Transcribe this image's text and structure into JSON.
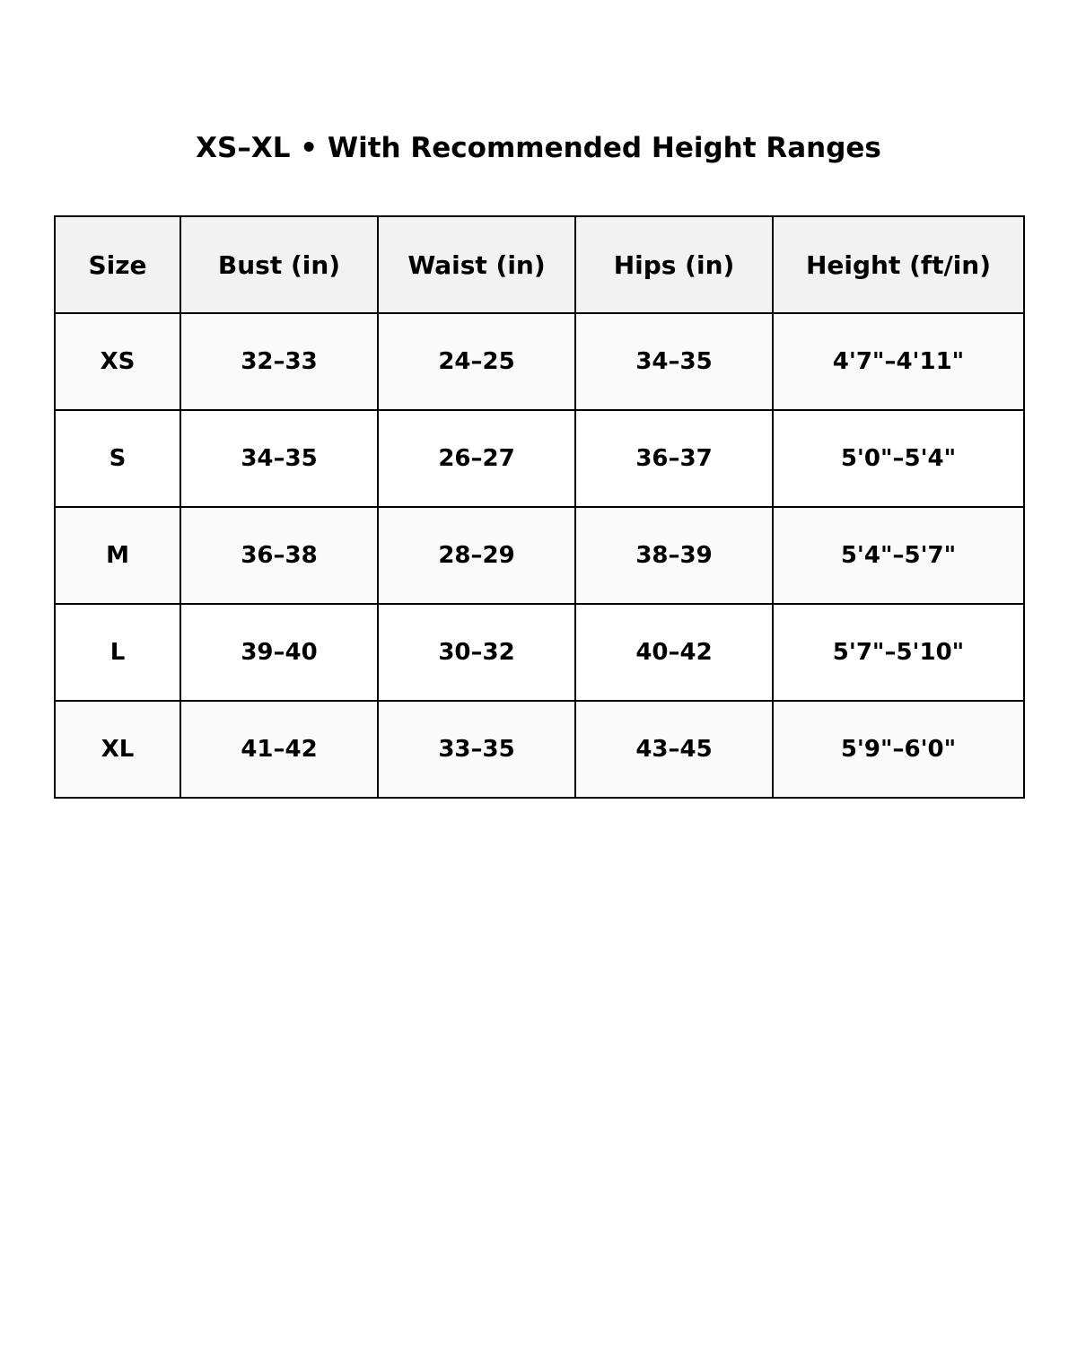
{
  "title": "XS–XL • With Recommended Height Ranges",
  "table": {
    "headers": [
      "Size",
      "Bust (in)",
      "Waist (in)",
      "Hips (in)",
      "Height (ft/in)"
    ],
    "rows": [
      [
        "XS",
        "32–33",
        "24–25",
        "34–35",
        "4'7\"–4'11\""
      ],
      [
        "S",
        "34–35",
        "26–27",
        "36–37",
        "5'0\"–5'4\""
      ],
      [
        "M",
        "36–38",
        "28–29",
        "38–39",
        "5'4\"–5'7\""
      ],
      [
        "L",
        "39–40",
        "30–32",
        "40–42",
        "5'7\"–5'10\""
      ],
      [
        "XL",
        "41–42",
        "33–35",
        "43–45",
        "5'9\"–6'0\""
      ]
    ]
  },
  "colors": {
    "header_bg": "#f2f2f2",
    "odd_row_bg": "#fafafa",
    "even_row_bg": "#ffffff",
    "border": "#000000"
  }
}
